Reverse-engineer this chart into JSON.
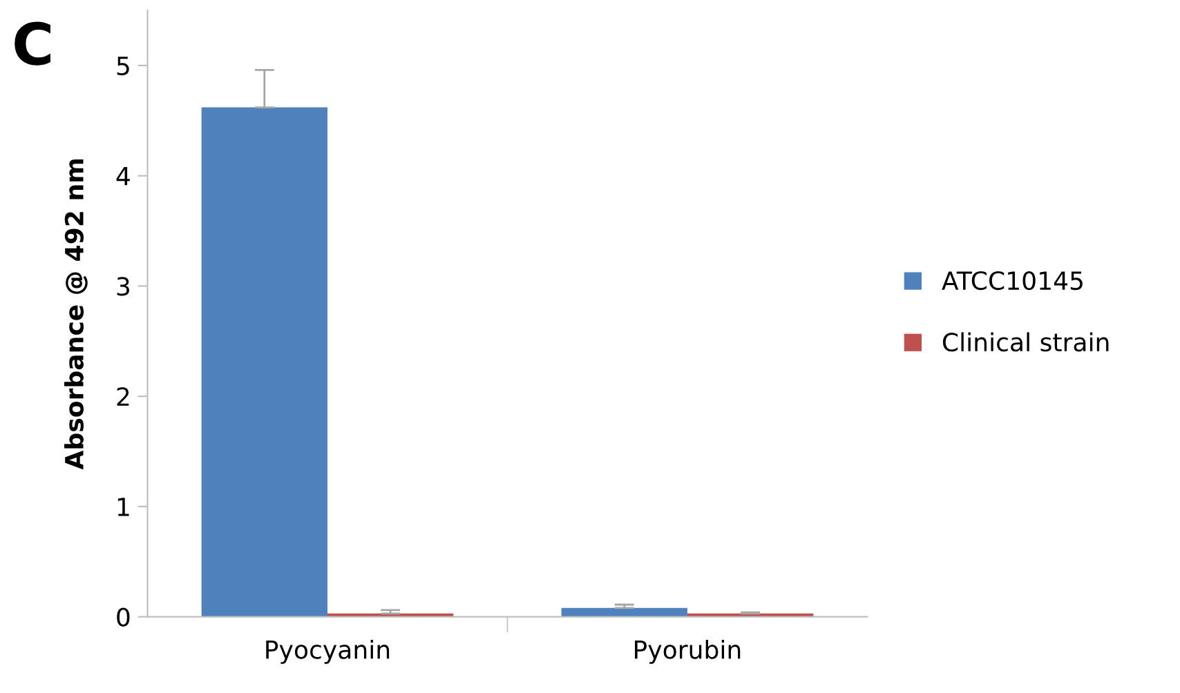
{
  "chart_data": {
    "type": "bar",
    "ylabel": "Absorbance @ 492 nm",
    "annotations": [
      "C"
    ],
    "categories": [
      "Pyocyanin",
      "Pyorubin"
    ],
    "series": [
      {
        "name": "ATCC10145",
        "color": "#4f81bd",
        "values": [
          4.62,
          0.08
        ],
        "errors": [
          0.34,
          0.03
        ]
      },
      {
        "name": "Clinical strain",
        "color": "#c0504d",
        "values": [
          0.03,
          0.03
        ],
        "errors": [
          0.03,
          0.01
        ]
      }
    ],
    "ylim": [
      0,
      5.5
    ],
    "yticks": [
      0,
      1,
      2,
      3,
      4,
      5
    ],
    "grid": false,
    "legend": "right"
  }
}
